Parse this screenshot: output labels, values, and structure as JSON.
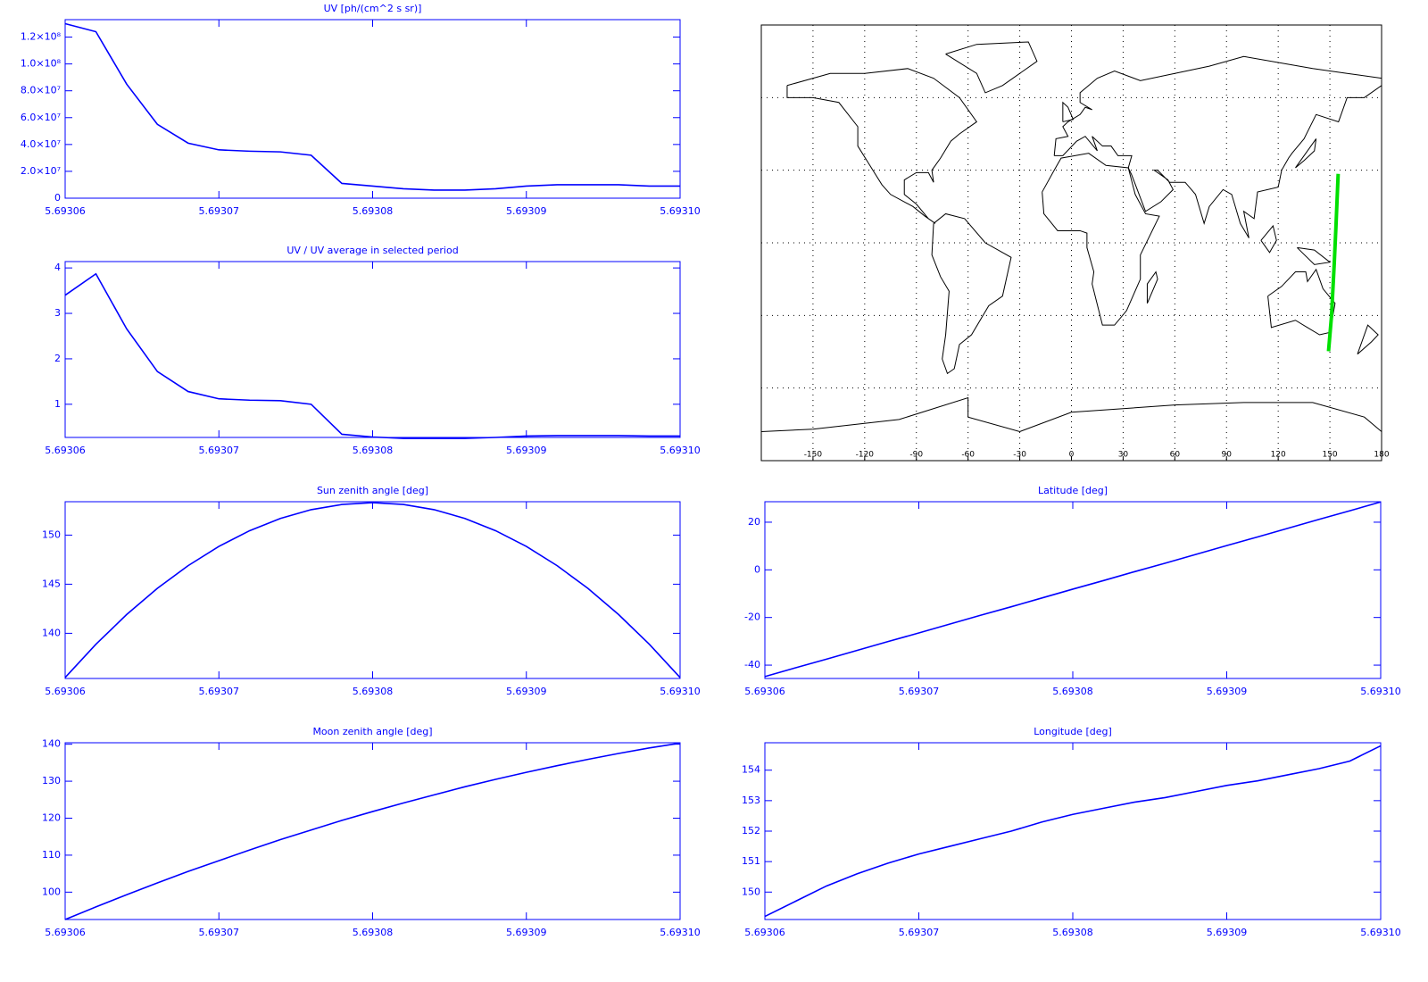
{
  "chart_data": [
    {
      "type": "line",
      "title": "UV [ph/(cm^2 s sr)]",
      "color": "#0000ff",
      "x": [
        5.69306,
        5.693062,
        5.693064,
        5.693066,
        5.693068,
        5.69307,
        5.693072,
        5.693074,
        5.693076,
        5.693078,
        5.69308,
        5.693082,
        5.693084,
        5.693086,
        5.693088,
        5.69309,
        5.693092,
        5.693094,
        5.693096,
        5.693098,
        5.6931
      ],
      "values": [
        130000000,
        124000000,
        85000000,
        55000000,
        41000000,
        36000000,
        35000000,
        34500000,
        32000000,
        11000000,
        9000000,
        7000000,
        6000000,
        6000000,
        7000000,
        9000000,
        10000000,
        10000000,
        10000000,
        9000000,
        9000000
      ],
      "xlim": [
        5.69306,
        5.6931
      ],
      "xticks": [
        5.69306,
        5.69307,
        5.69308,
        5.69309,
        {
          "value": 5.6931,
          "label": "5.69310"
        }
      ],
      "ylim": [
        0,
        133000000
      ],
      "yticks": [
        0,
        {
          "value": 20000000,
          "label": "2.0×10⁷"
        },
        {
          "value": 40000000,
          "label": "4.0×10⁷"
        },
        {
          "value": 60000000,
          "label": "6.0×10⁷"
        },
        {
          "value": 80000000,
          "label": "8.0×10⁷"
        },
        {
          "value": 100000000,
          "label": "1.0×10⁸"
        },
        {
          "value": 120000000,
          "label": "1.2×10⁸"
        }
      ]
    },
    {
      "type": "line",
      "title": "UV / UV average in selected period",
      "color": "#0000ff",
      "x": [
        5.69306,
        5.693062,
        5.693064,
        5.693066,
        5.693068,
        5.69307,
        5.693072,
        5.693074,
        5.693076,
        5.693078,
        5.69308,
        5.693082,
        5.693084,
        5.693086,
        5.693088,
        5.69309,
        5.693092,
        5.693094,
        5.693096,
        5.693098,
        5.6931
      ],
      "values": [
        3.4,
        3.87,
        2.66,
        1.72,
        1.28,
        1.12,
        1.09,
        1.08,
        1.0,
        0.34,
        0.28,
        0.25,
        0.25,
        0.25,
        0.27,
        0.3,
        0.31,
        0.31,
        0.31,
        0.3,
        0.3
      ],
      "xlim": [
        5.69306,
        5.6931
      ],
      "xticks": [
        5.69306,
        5.69307,
        5.69308,
        5.69309,
        {
          "value": 5.6931,
          "label": "5.69310"
        }
      ],
      "ylim": [
        0.27,
        4.14
      ],
      "yticks": [
        1,
        2,
        3,
        4
      ]
    },
    {
      "type": "map",
      "color": "#00e000",
      "xlim": [
        -180,
        180
      ],
      "ylim": [
        -90,
        90
      ],
      "xticks": [
        -150,
        -120,
        -90,
        -60,
        -30,
        0,
        30,
        60,
        90,
        120,
        150,
        180
      ],
      "yticks": [
        -60,
        -30,
        0,
        30,
        60
      ],
      "series": [
        {
          "color": "#00e000",
          "x": [
            149.2,
            150.95,
            152.55,
            153.5,
            154.8
          ],
          "y": [
            -44.8,
            -30.1,
            -8.1,
            6.5,
            28.5
          ]
        }
      ]
    },
    {
      "type": "line",
      "title": "Sun zenith angle [deg]",
      "color": "#0000ff",
      "x": [
        5.69306,
        5.693062,
        5.693064,
        5.693066,
        5.693068,
        5.69307,
        5.693072,
        5.693074,
        5.693076,
        5.693078,
        5.69308,
        5.693082,
        5.693084,
        5.693086,
        5.693088,
        5.69309,
        5.693092,
        5.693094,
        5.693096,
        5.693098,
        5.6931
      ],
      "values": [
        135.5,
        138.88,
        141.91,
        144.58,
        146.89,
        148.85,
        150.45,
        151.7,
        152.59,
        153.12,
        153.3,
        153.12,
        152.59,
        151.7,
        150.45,
        148.85,
        146.89,
        144.58,
        141.91,
        138.88,
        135.5
      ],
      "xlim": [
        5.69306,
        5.6931
      ],
      "xticks": [
        5.69306,
        5.69307,
        5.69308,
        5.69309,
        {
          "value": 5.6931,
          "label": "5.69310"
        }
      ],
      "ylim": [
        135.4,
        153.4
      ],
      "yticks": [
        140,
        145,
        150
      ]
    },
    {
      "type": "line",
      "title": "Latitude [deg]",
      "color": "#0000ff",
      "x": [
        5.69306,
        5.693062,
        5.693064,
        5.693066,
        5.693068,
        5.69307,
        5.693072,
        5.693074,
        5.693076,
        5.693078,
        5.69308,
        5.693082,
        5.693084,
        5.693086,
        5.693088,
        5.69309,
        5.693092,
        5.693094,
        5.693096,
        5.693098,
        5.6931
      ],
      "values": [
        -44.8,
        -41.1,
        -37.5,
        -33.8,
        -30.1,
        -26.5,
        -22.8,
        -19.1,
        -15.5,
        -11.8,
        -8.1,
        -4.5,
        -0.8,
        2.8,
        6.5,
        10.2,
        13.8,
        17.5,
        21.2,
        24.8,
        28.5
      ],
      "xlim": [
        5.69306,
        5.6931
      ],
      "xticks": [
        5.69306,
        5.69307,
        5.69308,
        5.69309,
        {
          "value": 5.6931,
          "label": "5.69310"
        }
      ],
      "ylim": [
        -45.6,
        28.6
      ],
      "yticks": [
        -40,
        -20,
        0,
        20
      ]
    },
    {
      "type": "line",
      "title": "Moon zenith angle [deg]",
      "color": "#0000ff",
      "x": [
        5.69306,
        5.693062,
        5.693064,
        5.693066,
        5.693068,
        5.69307,
        5.693072,
        5.693074,
        5.693076,
        5.693078,
        5.69308,
        5.693082,
        5.693084,
        5.693086,
        5.693088,
        5.69309,
        5.693092,
        5.693094,
        5.693096,
        5.693098,
        5.6931
      ],
      "values": [
        92.6,
        96.0,
        99.3,
        102.5,
        105.6,
        108.5,
        111.4,
        114.2,
        116.8,
        119.4,
        121.8,
        124.1,
        126.3,
        128.5,
        130.5,
        132.4,
        134.2,
        135.9,
        137.5,
        139.0,
        140.3
      ],
      "xlim": [
        5.69306,
        5.6931
      ],
      "xticks": [
        5.69306,
        5.69307,
        5.69308,
        5.69309,
        {
          "value": 5.6931,
          "label": "5.69310"
        }
      ],
      "ylim": [
        92.6,
        140.4
      ],
      "yticks": [
        100,
        110,
        120,
        130,
        140
      ]
    },
    {
      "type": "line",
      "title": "Longitude [deg]",
      "color": "#0000ff",
      "x": [
        5.69306,
        5.693062,
        5.693064,
        5.693066,
        5.693068,
        5.69307,
        5.693072,
        5.693074,
        5.693076,
        5.693078,
        5.69308,
        5.693082,
        5.693084,
        5.693086,
        5.693088,
        5.69309,
        5.693092,
        5.693094,
        5.693096,
        5.693098,
        5.6931
      ],
      "values": [
        149.2,
        149.7,
        150.2,
        150.6,
        150.95,
        151.25,
        151.5,
        151.75,
        152.0,
        152.3,
        152.55,
        152.75,
        152.95,
        153.1,
        153.3,
        153.5,
        153.65,
        153.85,
        154.05,
        154.3,
        154.8
      ],
      "xlim": [
        5.69306,
        5.6931
      ],
      "xticks": [
        5.69306,
        5.69307,
        5.69308,
        5.69309,
        {
          "value": 5.6931,
          "label": "5.69310"
        }
      ],
      "ylim": [
        149.1,
        154.9
      ],
      "yticks": [
        150,
        151,
        152,
        153,
        154
      ]
    }
  ]
}
